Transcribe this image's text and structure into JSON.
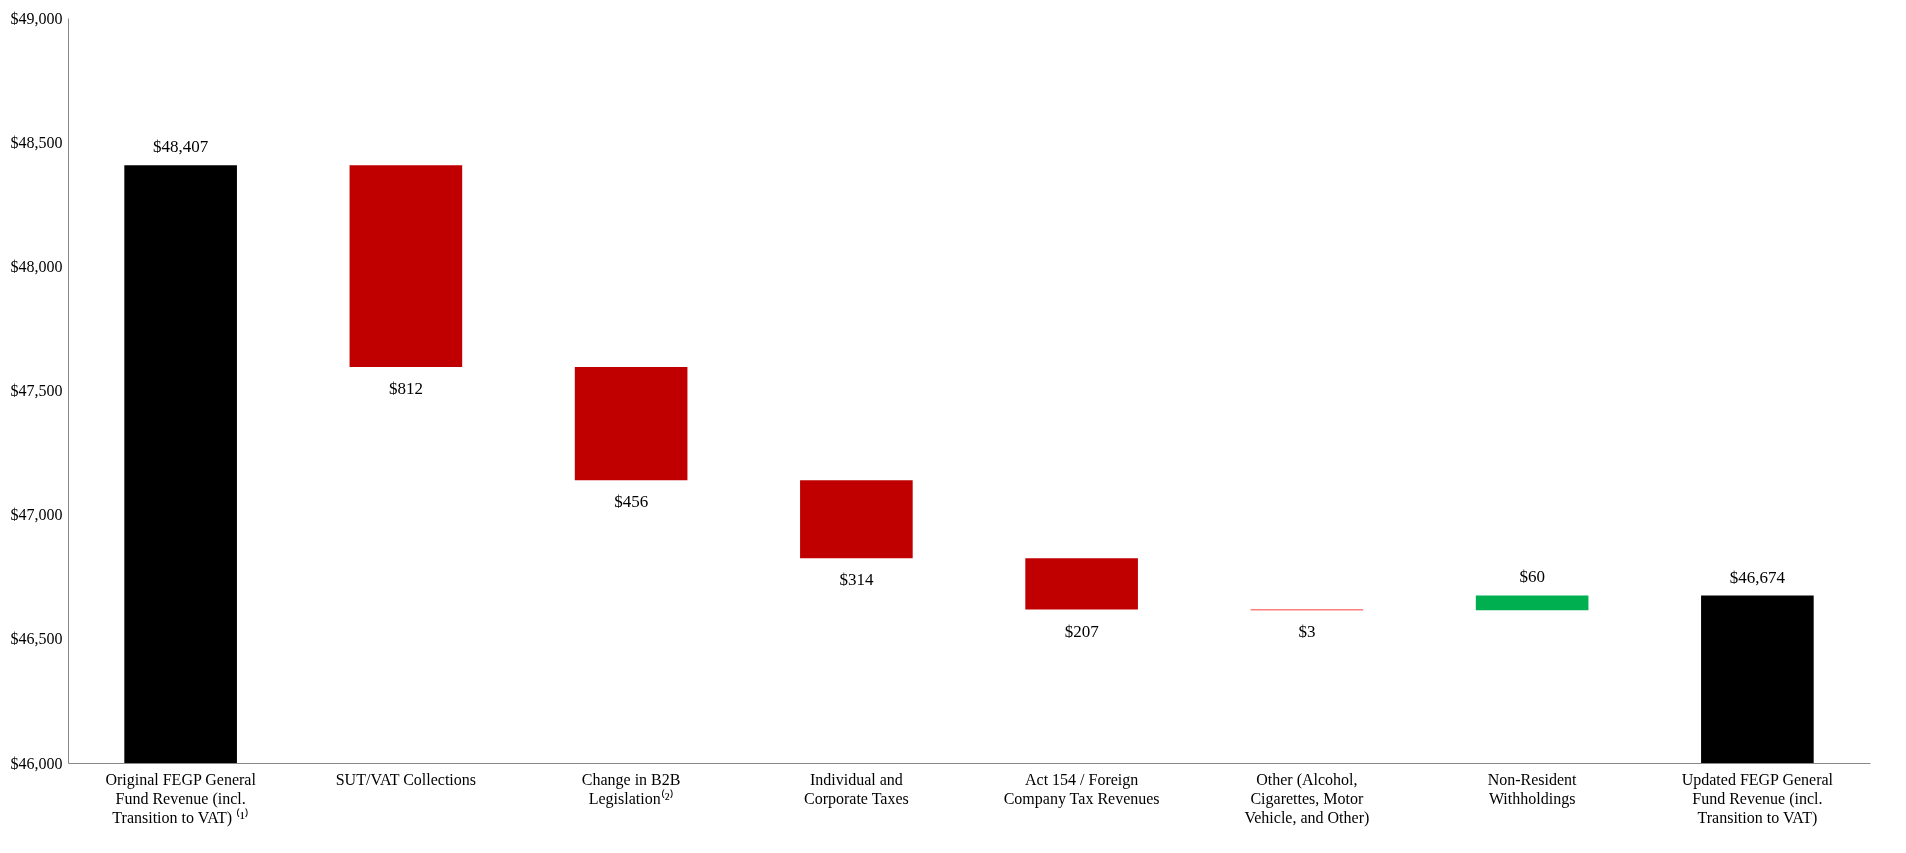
{
  "chart_data": {
    "type": "bar",
    "categories": [
      "Original FEGP General Fund Revenue (incl. Transition to VAT) ⁽¹⁾",
      "SUT/VAT Collections",
      "Change in B2B Legislation⁽²⁾",
      "Individual and Corporate Taxes",
      "Act 154 / Foreign Company Tax Revenues",
      "Other (Alcohol, Cigarettes, Motor Vehicle, and Other)",
      "Non-Resident Withholdings",
      "Updated FEGP General Fund Revenue (incl. Transition to VAT)"
    ],
    "values": [
      48407,
      -812,
      -456,
      -314,
      -207,
      -3,
      60,
      46674
    ],
    "base": [
      null,
      48407,
      47595,
      47139,
      46825,
      46618,
      46615,
      null
    ],
    "colors": [
      "#000000",
      "#c00000",
      "#c00000",
      "#c00000",
      "#c00000",
      "#ff0000",
      "#00b050",
      "#000000"
    ],
    "value_labels": [
      "$48,407",
      "$812",
      "$456",
      "$314",
      "$207",
      "$3",
      "$60",
      "$46,674"
    ],
    "ylim": [
      46000,
      49000
    ],
    "yticks": [
      {
        "value": 46000,
        "label": "$46,000"
      },
      {
        "value": 46500,
        "label": "$46,500"
      },
      {
        "value": 47000,
        "label": "$47,000"
      },
      {
        "value": 47500,
        "label": "$47,500"
      },
      {
        "value": 48000,
        "label": "$48,000"
      },
      {
        "value": 48500,
        "label": "$48,500"
      },
      {
        "value": 49000,
        "label": "$49,000"
      }
    ],
    "grid": false
  }
}
